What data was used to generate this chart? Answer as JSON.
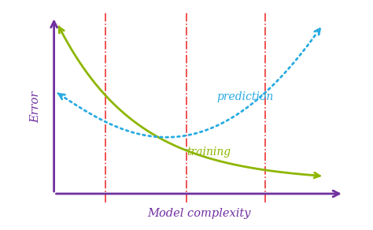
{
  "xlabel": "Model complexity",
  "ylabel": "Error",
  "xlabel_color": "#7030A0",
  "ylabel_color": "#7030A0",
  "axis_color": "#7030A0",
  "training_color": "#8DB600",
  "prediction_color": "#29ABE2",
  "vline_color": "#EE3333",
  "vline_positions": [
    0.25,
    0.52,
    0.78
  ],
  "background_color": "#FFFFFF",
  "training_label": "training",
  "prediction_label": "prediction",
  "training_label_color": "#8DB600",
  "prediction_label_color": "#29ABE2"
}
